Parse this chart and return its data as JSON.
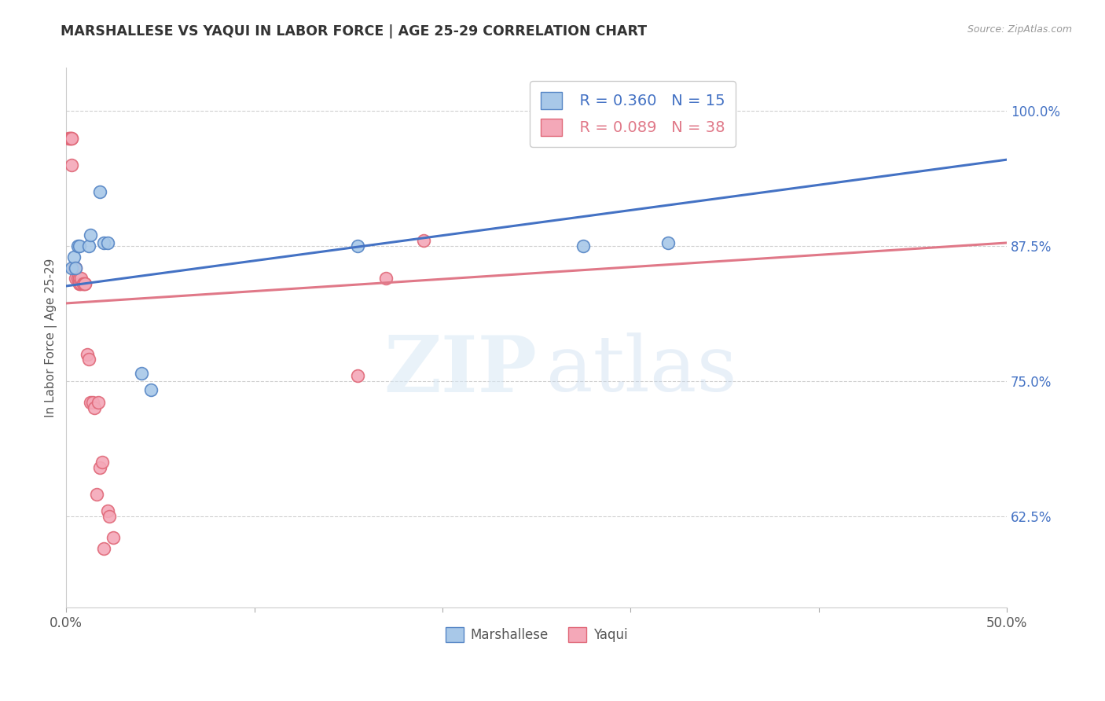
{
  "title": "MARSHALLESE VS YAQUI IN LABOR FORCE | AGE 25-29 CORRELATION CHART",
  "source_text": "Source: ZipAtlas.com",
  "xlim": [
    0.0,
    0.5
  ],
  "ylim": [
    0.54,
    1.04
  ],
  "ylabel": "In Labor Force | Age 25-29",
  "blue_label_R": "R = 0.360",
  "blue_label_N": "N = 15",
  "pink_label_R": "R = 0.089",
  "pink_label_N": "N = 38",
  "legend_label_blue": "Marshallese",
  "legend_label_pink": "Yaqui",
  "blue_color": "#a8c8e8",
  "pink_color": "#f4a8b8",
  "blue_edge_color": "#5585c5",
  "pink_edge_color": "#e06878",
  "blue_line_color": "#4472c4",
  "pink_line_color": "#e07888",
  "blue_scatter_x": [
    0.003,
    0.004,
    0.005,
    0.006,
    0.007,
    0.012,
    0.013,
    0.018,
    0.02,
    0.022,
    0.04,
    0.045,
    0.155,
    0.275,
    0.32
  ],
  "blue_scatter_y": [
    0.855,
    0.865,
    0.855,
    0.875,
    0.875,
    0.875,
    0.885,
    0.925,
    0.878,
    0.878,
    0.757,
    0.742,
    0.875,
    0.875,
    0.878
  ],
  "pink_scatter_x": [
    0.001,
    0.002,
    0.002,
    0.003,
    0.003,
    0.003,
    0.004,
    0.004,
    0.005,
    0.005,
    0.006,
    0.006,
    0.007,
    0.007,
    0.007,
    0.007,
    0.008,
    0.008,
    0.009,
    0.009,
    0.01,
    0.01,
    0.011,
    0.012,
    0.013,
    0.014,
    0.015,
    0.016,
    0.017,
    0.018,
    0.019,
    0.02,
    0.022,
    0.023,
    0.025,
    0.155,
    0.17,
    0.19
  ],
  "pink_scatter_y": [
    0.975,
    0.975,
    0.975,
    0.975,
    0.975,
    0.95,
    0.855,
    0.855,
    0.845,
    0.855,
    0.845,
    0.845,
    0.84,
    0.845,
    0.845,
    0.84,
    0.84,
    0.845,
    0.84,
    0.84,
    0.84,
    0.84,
    0.775,
    0.77,
    0.73,
    0.73,
    0.725,
    0.645,
    0.73,
    0.67,
    0.675,
    0.595,
    0.63,
    0.625,
    0.605,
    0.755,
    0.845,
    0.88
  ],
  "blue_trend_x": [
    0.0,
    0.5
  ],
  "blue_trend_y": [
    0.838,
    0.955
  ],
  "pink_trend_x": [
    0.0,
    0.5
  ],
  "pink_trend_y": [
    0.822,
    0.878
  ],
  "ytick_positions": [
    0.625,
    0.75,
    0.875,
    1.0
  ],
  "ytick_labels": [
    "62.5%",
    "75.0%",
    "87.5%",
    "100.0%"
  ],
  "grid_color": "#d0d0d0",
  "background_color": "#ffffff",
  "title_color": "#333333",
  "source_color": "#999999",
  "ylabel_color": "#555555",
  "tick_label_color_y": "#4472c4",
  "tick_label_color_x": "#555555",
  "legend_R_color_blue": "#4472c4",
  "legend_R_color_pink": "#e07888",
  "legend_N_color_blue": "#4472c4",
  "legend_N_color_pink": "#e07888"
}
